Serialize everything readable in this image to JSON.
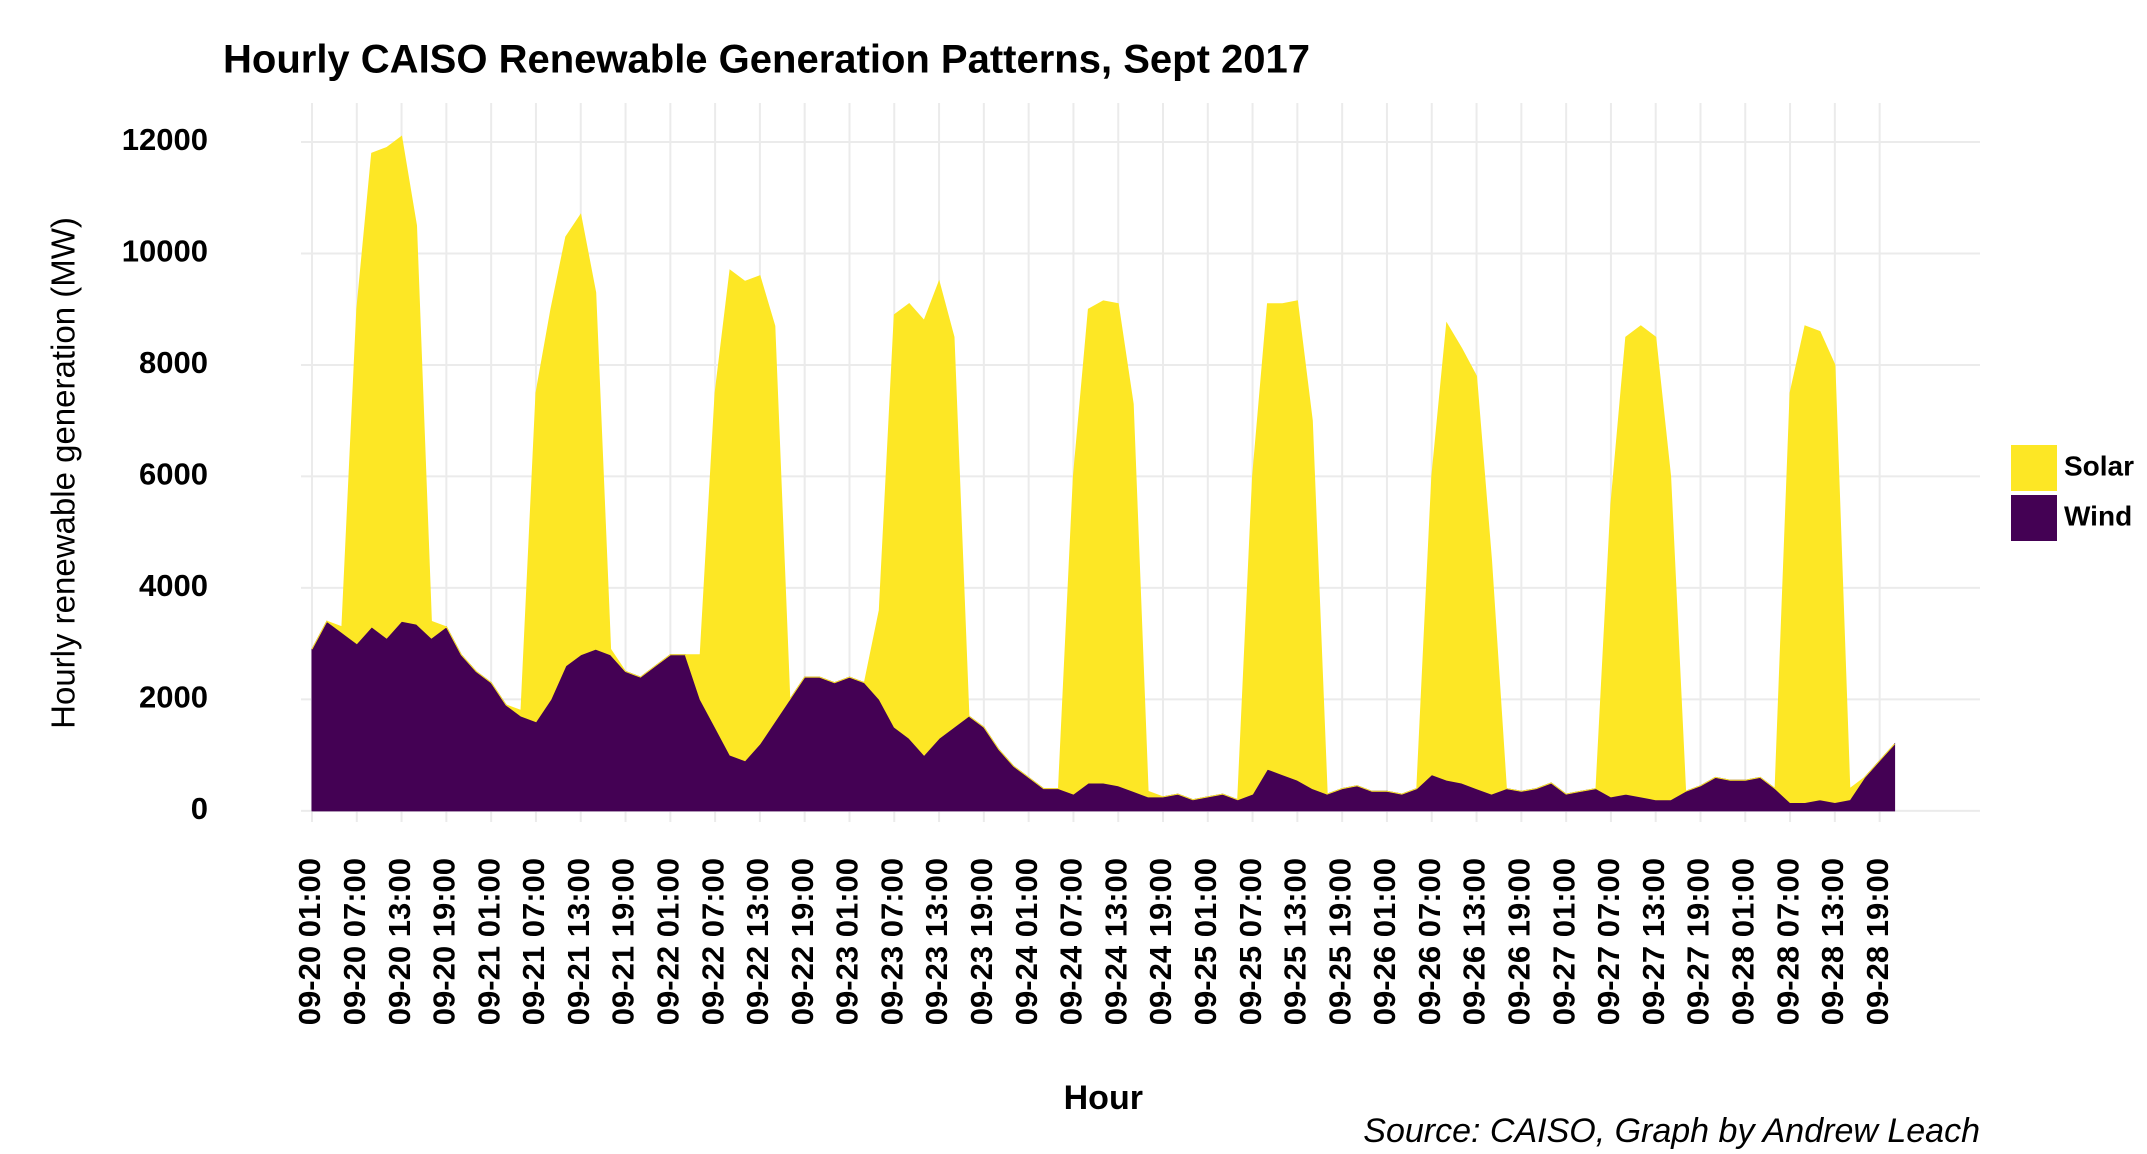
{
  "chart_data": {
    "type": "area",
    "stacked": true,
    "title": "Hourly CAISO Renewable Generation Patterns, Sept 2017",
    "x_label": "Hour",
    "y_label": "Hourly renewable generation (MW)",
    "caption": "Source: CAISO, Graph by Andrew Leach",
    "categories": [
      "09-20 01:00",
      null,
      null,
      "09-20 07:00",
      null,
      null,
      "09-20 13:00",
      null,
      null,
      "09-20 19:00",
      null,
      null,
      "09-21 01:00",
      null,
      null,
      "09-21 07:00",
      null,
      null,
      "09-21 13:00",
      null,
      null,
      "09-21 19:00",
      null,
      null,
      "09-22 01:00",
      null,
      null,
      "09-22 07:00",
      null,
      null,
      "09-22 13:00",
      null,
      null,
      "09-22 19:00",
      null,
      null,
      "09-23 01:00",
      null,
      null,
      "09-23 07:00",
      null,
      null,
      "09-23 13:00",
      null,
      null,
      "09-23 19:00",
      null,
      null,
      "09-24 01:00",
      null,
      null,
      "09-24 07:00",
      null,
      null,
      "09-24 13:00",
      null,
      null,
      "09-24 19:00",
      null,
      null,
      "09-25 01:00",
      null,
      null,
      "09-25 07:00",
      null,
      null,
      "09-25 13:00",
      null,
      null,
      "09-25 19:00",
      null,
      null,
      "09-26 01:00",
      null,
      null,
      "09-26 07:00",
      null,
      null,
      "09-26 13:00",
      null,
      null,
      "09-26 19:00",
      null,
      null,
      "09-27 01:00",
      null,
      null,
      "09-27 07:00",
      null,
      null,
      "09-27 13:00",
      null,
      null,
      "09-27 19:00",
      null,
      null,
      "09-28 01:00",
      null,
      null,
      "09-28 07:00",
      null,
      null,
      "09-28 13:00",
      null,
      null,
      "09-28 19:00",
      null
    ],
    "series": [
      {
        "name": "Solar",
        "color": "#fde725",
        "values": [
          0,
          0,
          100,
          6000,
          8500,
          8800,
          8700,
          7150,
          300,
          0,
          0,
          0,
          0,
          0,
          100,
          5900,
          7000,
          7700,
          7900,
          6400,
          100,
          0,
          0,
          0,
          0,
          0,
          800,
          6000,
          8700,
          8600,
          8400,
          7100,
          0,
          0,
          0,
          0,
          0,
          0,
          1600,
          7400,
          7800,
          7800,
          8200,
          7000,
          0,
          0,
          0,
          0,
          0,
          0,
          0,
          5700,
          8500,
          8650,
          8650,
          6950,
          100,
          0,
          0,
          0,
          0,
          0,
          0,
          5700,
          8350,
          8450,
          8600,
          6600,
          0,
          0,
          0,
          0,
          0,
          0,
          0,
          5350,
          8200,
          7800,
          7400,
          4200,
          0,
          0,
          0,
          0,
          0,
          0,
          0,
          5250,
          8200,
          8450,
          8300,
          5800,
          0,
          0,
          0,
          0,
          0,
          0,
          0,
          7350,
          8550,
          8400,
          7850,
          200,
          0,
          0,
          0
        ]
      },
      {
        "name": "Wind",
        "color": "#440154",
        "values": [
          2900,
          3400,
          3200,
          3000,
          3300,
          3100,
          3400,
          3350,
          3100,
          3300,
          2800,
          2500,
          2300,
          1900,
          1700,
          1600,
          2000,
          2600,
          2800,
          2900,
          2800,
          2500,
          2400,
          2600,
          2800,
          2800,
          2000,
          1500,
          1000,
          900,
          1200,
          1600,
          2000,
          2400,
          2400,
          2300,
          2400,
          2300,
          2000,
          1500,
          1300,
          1000,
          1300,
          1500,
          1700,
          1500,
          1100,
          800,
          600,
          400,
          400,
          300,
          500,
          500,
          450,
          350,
          250,
          250,
          300,
          200,
          250,
          300,
          200,
          300,
          750,
          650,
          550,
          400,
          300,
          400,
          450,
          350,
          350,
          300,
          400,
          650,
          550,
          500,
          400,
          300,
          400,
          350,
          400,
          500,
          300,
          350,
          400,
          250,
          300,
          250,
          200,
          200,
          350,
          450,
          600,
          550,
          550,
          600,
          400,
          150,
          150,
          200,
          150,
          200,
          600,
          900,
          1200
        ]
      }
    ],
    "ylim": [
      -200,
      12700
    ],
    "yticks": [
      0,
      2000,
      4000,
      6000,
      8000,
      10000,
      12000
    ],
    "grid": true,
    "legend": "right"
  }
}
